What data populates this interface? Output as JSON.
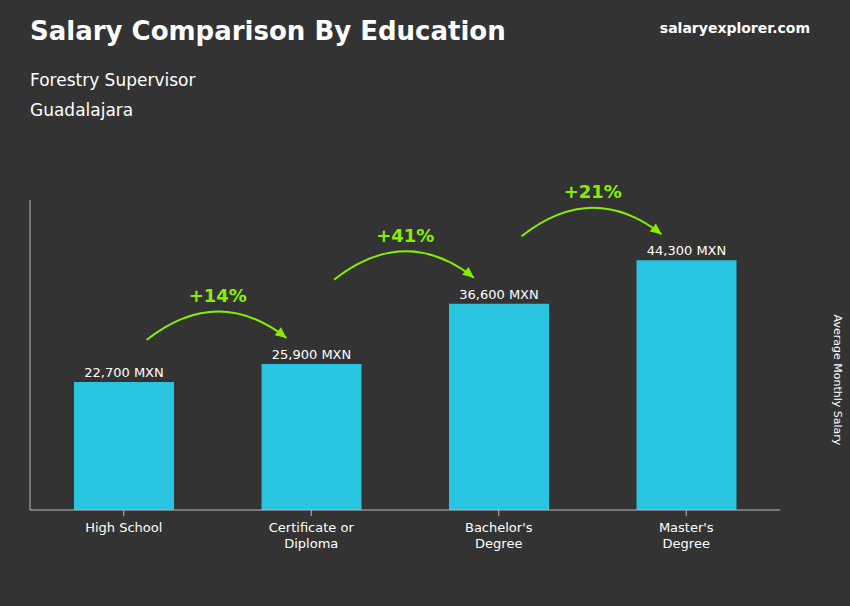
{
  "chart_data": {
    "type": "bar",
    "title": "Salary Comparison By Education",
    "subtitle": [
      "Forestry Supervisor",
      "Guadalajara"
    ],
    "y_label": "Average Monthly Salary",
    "categories": [
      "High School",
      "Certificate or\nDiploma",
      "Bachelor's\nDegree",
      "Master's\nDegree"
    ],
    "values": [
      22700,
      25900,
      36600,
      44300
    ],
    "value_labels": [
      "22,700 MXN",
      "25,900 MXN",
      "36,600 MXN",
      "44,300 MXN"
    ],
    "data_labels": true,
    "color": "#29c4e0",
    "ylim": [
      0,
      55000
    ],
    "yticks": [],
    "tick_labels": "x",
    "grid": false,
    "annotations": [
      {
        "text": "+14%",
        "category": "Certificate or\nDiploma",
        "color": "#88ee00"
      },
      {
        "text": "+41%",
        "category": "Bachelor's\nDegree",
        "color": "#88ee00"
      },
      {
        "text": "+21%",
        "category": "Master's\nDegree",
        "color": "#88ee00"
      },
      {
        "text": "salaryexplorer.com"
      }
    ]
  }
}
